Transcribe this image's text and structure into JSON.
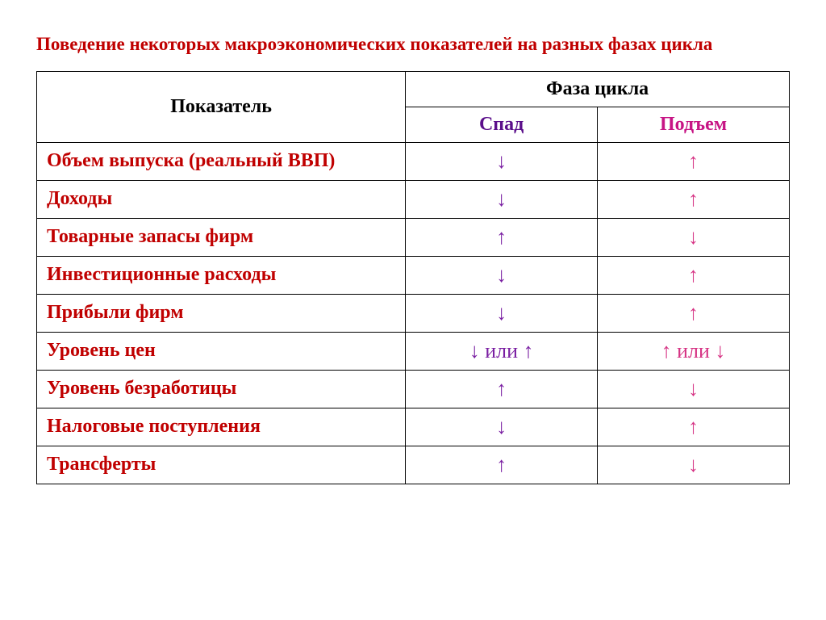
{
  "title": {
    "text": "Поведение некоторых макроэкономических показателей на разных фазах цикла",
    "color": "#c00000",
    "fontsize": 23
  },
  "headers": {
    "indicator": "Показатель",
    "phase": "Фаза цикла",
    "recession": "Спад",
    "expansion": "Подъем",
    "indicator_color": "#000000",
    "phase_color": "#000000",
    "recession_color": "#5b0f8b",
    "expansion_color": "#c71585",
    "fontsize": 24
  },
  "arrows": {
    "down": "↓",
    "up": "↑",
    "or": " или "
  },
  "arrow_colors": {
    "purple": "#7a1fa2",
    "pink": "#d63384"
  },
  "rows": [
    {
      "label": "Объем выпуска (реальный ВВП)",
      "recession": {
        "type": "down",
        "color": "purple"
      },
      "expansion": {
        "type": "up",
        "color": "pink"
      }
    },
    {
      "label": "Доходы",
      "recession": {
        "type": "down",
        "color": "purple"
      },
      "expansion": {
        "type": "up",
        "color": "pink"
      }
    },
    {
      "label": "Товарные запасы фирм",
      "recession": {
        "type": "up",
        "color": "purple"
      },
      "expansion": {
        "type": "down",
        "color": "pink"
      }
    },
    {
      "label": "Инвестиционные расходы",
      "recession": {
        "type": "down",
        "color": "purple"
      },
      "expansion": {
        "type": "up",
        "color": "pink"
      }
    },
    {
      "label": "Прибыли фирм",
      "recession": {
        "type": "down",
        "color": "purple"
      },
      "expansion": {
        "type": "up",
        "color": "pink"
      }
    },
    {
      "label": "Уровень цен",
      "recession": {
        "type": "down-or-up",
        "color": "purple"
      },
      "expansion": {
        "type": "up-or-down",
        "color": "pink"
      }
    },
    {
      "label": "Уровень безработицы",
      "recession": {
        "type": "up",
        "color": "purple"
      },
      "expansion": {
        "type": "down",
        "color": "pink"
      }
    },
    {
      "label": "Налоговые поступления",
      "recession": {
        "type": "down",
        "color": "purple"
      },
      "expansion": {
        "type": "up",
        "color": "pink"
      }
    },
    {
      "label": "Трансферты",
      "recession": {
        "type": "up",
        "color": "purple"
      },
      "expansion": {
        "type": "down",
        "color": "pink"
      }
    }
  ],
  "row_label_color": "#c00000",
  "row_fontsize": 24,
  "arrow_fontsize": 26
}
